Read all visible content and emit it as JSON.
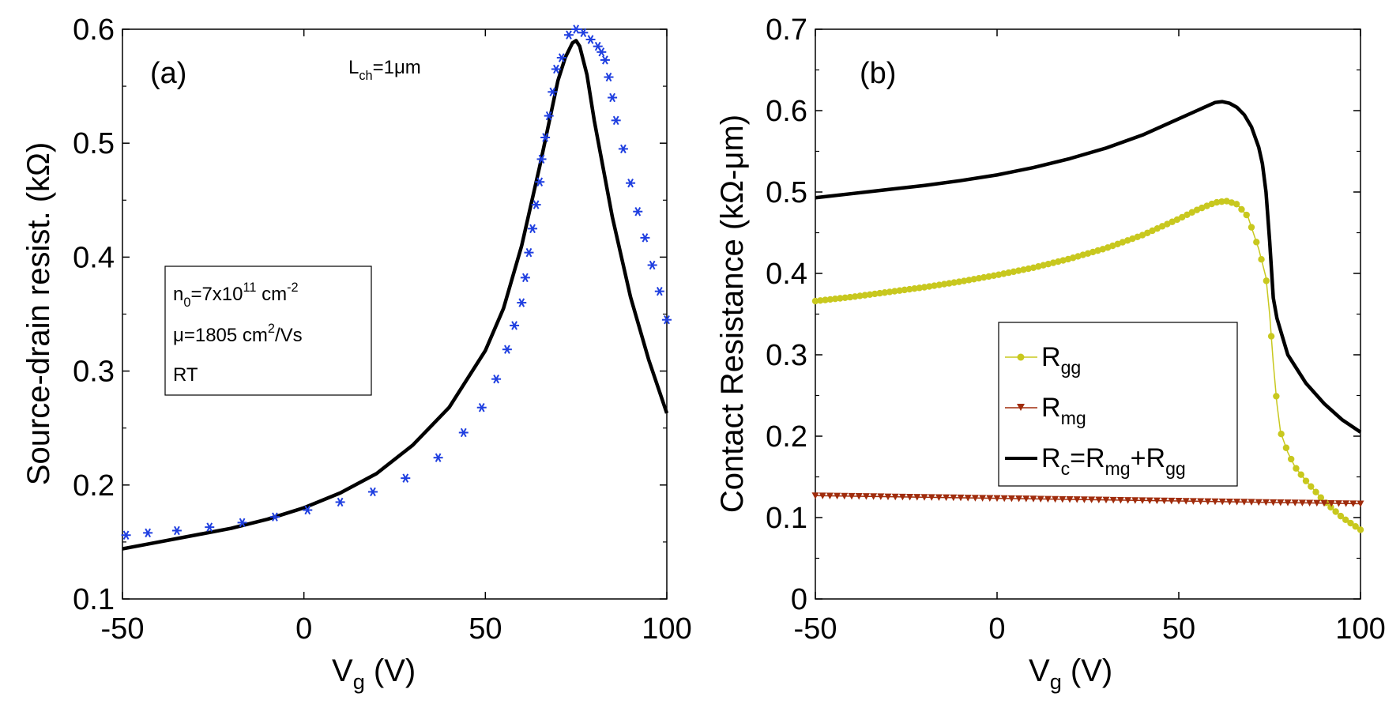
{
  "chart_data": [
    {
      "type": "line",
      "panel_label": "(a)",
      "xlabel": "V",
      "xlabel_sub": "g",
      "xlabel_unit": " (V)",
      "ylabel": "Source-drain resist. (kΩ)",
      "xlim": [
        -50,
        100
      ],
      "ylim": [
        0.1,
        0.6
      ],
      "xticks": [
        -50,
        0,
        50,
        100
      ],
      "yticks": [
        0.1,
        0.2,
        0.3,
        0.4,
        0.5,
        0.6
      ],
      "xtick_labels": [
        "-50",
        "0",
        "50",
        "100"
      ],
      "ytick_labels": [
        "0.1",
        "0.2",
        "0.3",
        "0.4",
        "0.5",
        "0.6"
      ],
      "annotation": {
        "main": "L",
        "sub": "ch",
        "rest": "=1μm"
      },
      "info_box": {
        "line1": {
          "a": "n",
          "a_sub": "0",
          "b": "=7x10",
          "b_sup": "11",
          "c": " cm",
          "c_sup": "-2"
        },
        "line2": {
          "a": "μ=1805 cm",
          "a_sup": "2",
          "b": "/Vs"
        },
        "line3": "RT"
      },
      "series": [
        {
          "name": "model",
          "style": "solid",
          "color": "#000000",
          "x": [
            -50,
            -40,
            -30,
            -20,
            -10,
            0,
            10,
            20,
            30,
            40,
            50,
            55,
            60,
            65,
            70,
            72,
            74,
            75,
            76,
            78,
            80,
            85,
            90,
            95,
            100
          ],
          "y": [
            0.144,
            0.15,
            0.156,
            0.162,
            0.17,
            0.18,
            0.193,
            0.21,
            0.235,
            0.268,
            0.318,
            0.355,
            0.41,
            0.48,
            0.555,
            0.575,
            0.588,
            0.59,
            0.585,
            0.56,
            0.52,
            0.435,
            0.365,
            0.31,
            0.263
          ]
        },
        {
          "name": "measured",
          "style": "asterisk",
          "color": "#1f3fe0",
          "x": [
            -49,
            -43,
            -35,
            -26,
            -17,
            -8,
            1,
            10,
            19,
            28,
            37,
            44,
            49,
            53,
            56,
            58,
            60,
            61,
            62,
            63,
            64,
            65,
            65.5,
            66.5,
            67.5,
            68.5,
            69.5,
            71,
            73,
            75,
            77,
            79,
            81,
            82,
            83,
            84,
            85,
            86,
            88,
            90,
            92,
            94,
            96,
            98,
            100
          ],
          "y": [
            0.156,
            0.158,
            0.16,
            0.163,
            0.167,
            0.172,
            0.178,
            0.185,
            0.194,
            0.206,
            0.224,
            0.246,
            0.268,
            0.293,
            0.319,
            0.34,
            0.36,
            0.382,
            0.404,
            0.425,
            0.446,
            0.466,
            0.486,
            0.505,
            0.524,
            0.545,
            0.565,
            0.575,
            0.595,
            0.6,
            0.597,
            0.591,
            0.585,
            0.58,
            0.573,
            0.558,
            0.54,
            0.52,
            0.495,
            0.465,
            0.44,
            0.417,
            0.393,
            0.37,
            0.345
          ]
        }
      ]
    },
    {
      "type": "line",
      "panel_label": "(b)",
      "xlabel": "V",
      "xlabel_sub": "g",
      "xlabel_unit": " (V)",
      "ylabel": "Contact Resistance (kΩ-μm)",
      "xlim": [
        -50,
        100
      ],
      "ylim": [
        0,
        0.7
      ],
      "xticks": [
        -50,
        0,
        50,
        100
      ],
      "yticks": [
        0,
        0.1,
        0.2,
        0.3,
        0.4,
        0.5,
        0.6,
        0.7
      ],
      "xtick_labels": [
        "-50",
        "0",
        "50",
        "100"
      ],
      "ytick_labels": [
        "0",
        "0.1",
        "0.2",
        "0.3",
        "0.4",
        "0.5",
        "0.6",
        "0.7"
      ],
      "legend": [
        {
          "main": "R",
          "sub": "gg",
          "rest": "",
          "sub2": "",
          "rest2": "",
          "sub3": ""
        },
        {
          "main": "R",
          "sub": "mg",
          "rest": "",
          "sub2": "",
          "rest2": "",
          "sub3": ""
        },
        {
          "main": "R",
          "sub": "c",
          "rest": "=R",
          "sub2": "mg",
          "rest2": "+R",
          "sub3": "gg"
        }
      ],
      "series": [
        {
          "name": "Rgg",
          "color": "#c8c81e",
          "marker": "dot",
          "x": [
            -50,
            -40,
            -30,
            -20,
            -10,
            0,
            10,
            20,
            30,
            40,
            50,
            55,
            60,
            63,
            66,
            69,
            72,
            74,
            75,
            76,
            77,
            78,
            80,
            82,
            85,
            90,
            95,
            100
          ],
          "y": [
            0.366,
            0.371,
            0.377,
            0.383,
            0.39,
            0.398,
            0.407,
            0.418,
            0.431,
            0.447,
            0.467,
            0.478,
            0.487,
            0.489,
            0.485,
            0.47,
            0.43,
            0.395,
            0.35,
            0.29,
            0.24,
            0.205,
            0.18,
            0.162,
            0.145,
            0.12,
            0.1,
            0.085
          ]
        },
        {
          "name": "Rmg",
          "color": "#a02c0c",
          "marker": "triangle-down",
          "x": [
            -50,
            100
          ],
          "y": [
            0.127,
            0.117
          ]
        },
        {
          "name": "Rc",
          "color": "#000000",
          "marker": "none",
          "x": [
            -50,
            -40,
            -30,
            -20,
            -10,
            0,
            10,
            20,
            30,
            40,
            50,
            55,
            58,
            60,
            62,
            64,
            66,
            68,
            70,
            72,
            73,
            74,
            75,
            76,
            77,
            78,
            80,
            85,
            90,
            95,
            100
          ],
          "y": [
            0.493,
            0.498,
            0.503,
            0.508,
            0.514,
            0.521,
            0.53,
            0.541,
            0.554,
            0.57,
            0.59,
            0.6,
            0.606,
            0.61,
            0.611,
            0.609,
            0.604,
            0.595,
            0.58,
            0.555,
            0.535,
            0.5,
            0.44,
            0.37,
            0.345,
            0.33,
            0.3,
            0.265,
            0.24,
            0.22,
            0.205
          ]
        }
      ]
    }
  ]
}
